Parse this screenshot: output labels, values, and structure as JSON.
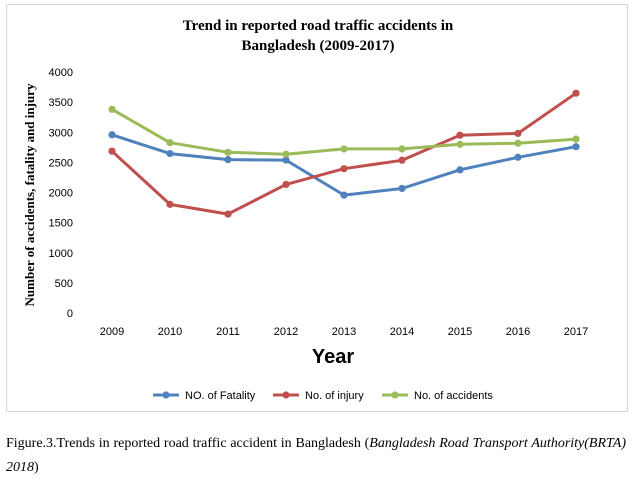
{
  "chart_data": {
    "type": "line",
    "title_line1": "Trend in reported road traffic accidents in",
    "title_line2": "Bangladesh (2009-2017)",
    "xlabel": "Year",
    "ylabel": "Number of accidents, fatality and injury",
    "x": [
      "2009",
      "2010",
      "2011",
      "2012",
      "2013",
      "2014",
      "2015",
      "2016",
      "2017"
    ],
    "ylim": [
      0,
      4000
    ],
    "yticks": [
      "0",
      "500",
      "1000",
      "1500",
      "2000",
      "2500",
      "3000",
      "3500",
      "4000"
    ],
    "grid": false,
    "legend_position": "bottom",
    "series": [
      {
        "name": "NO. of Fatality",
        "color": "#4f81bd",
        "values": [
          2958,
          2646,
          2546,
          2538,
          1957,
          2067,
          2376,
          2585,
          2760
        ]
      },
      {
        "name": "No. of injury",
        "color": "#c0504d",
        "values": [
          2686,
          1803,
          1641,
          2134,
          2395,
          2535,
          2951,
          2981,
          3648
        ]
      },
      {
        "name": "No. of accidents",
        "color": "#9bbb59",
        "values": [
          3381,
          2827,
          2667,
          2636,
          2723,
          2723,
          2800,
          2818,
          2886
        ]
      }
    ]
  },
  "caption": {
    "prefix": "Figure.3.Trends in reported road traffic accident in Bangladesh (",
    "source": "Bangladesh Road Transport Authority(BRTA) 2018",
    "suffix": ")"
  }
}
